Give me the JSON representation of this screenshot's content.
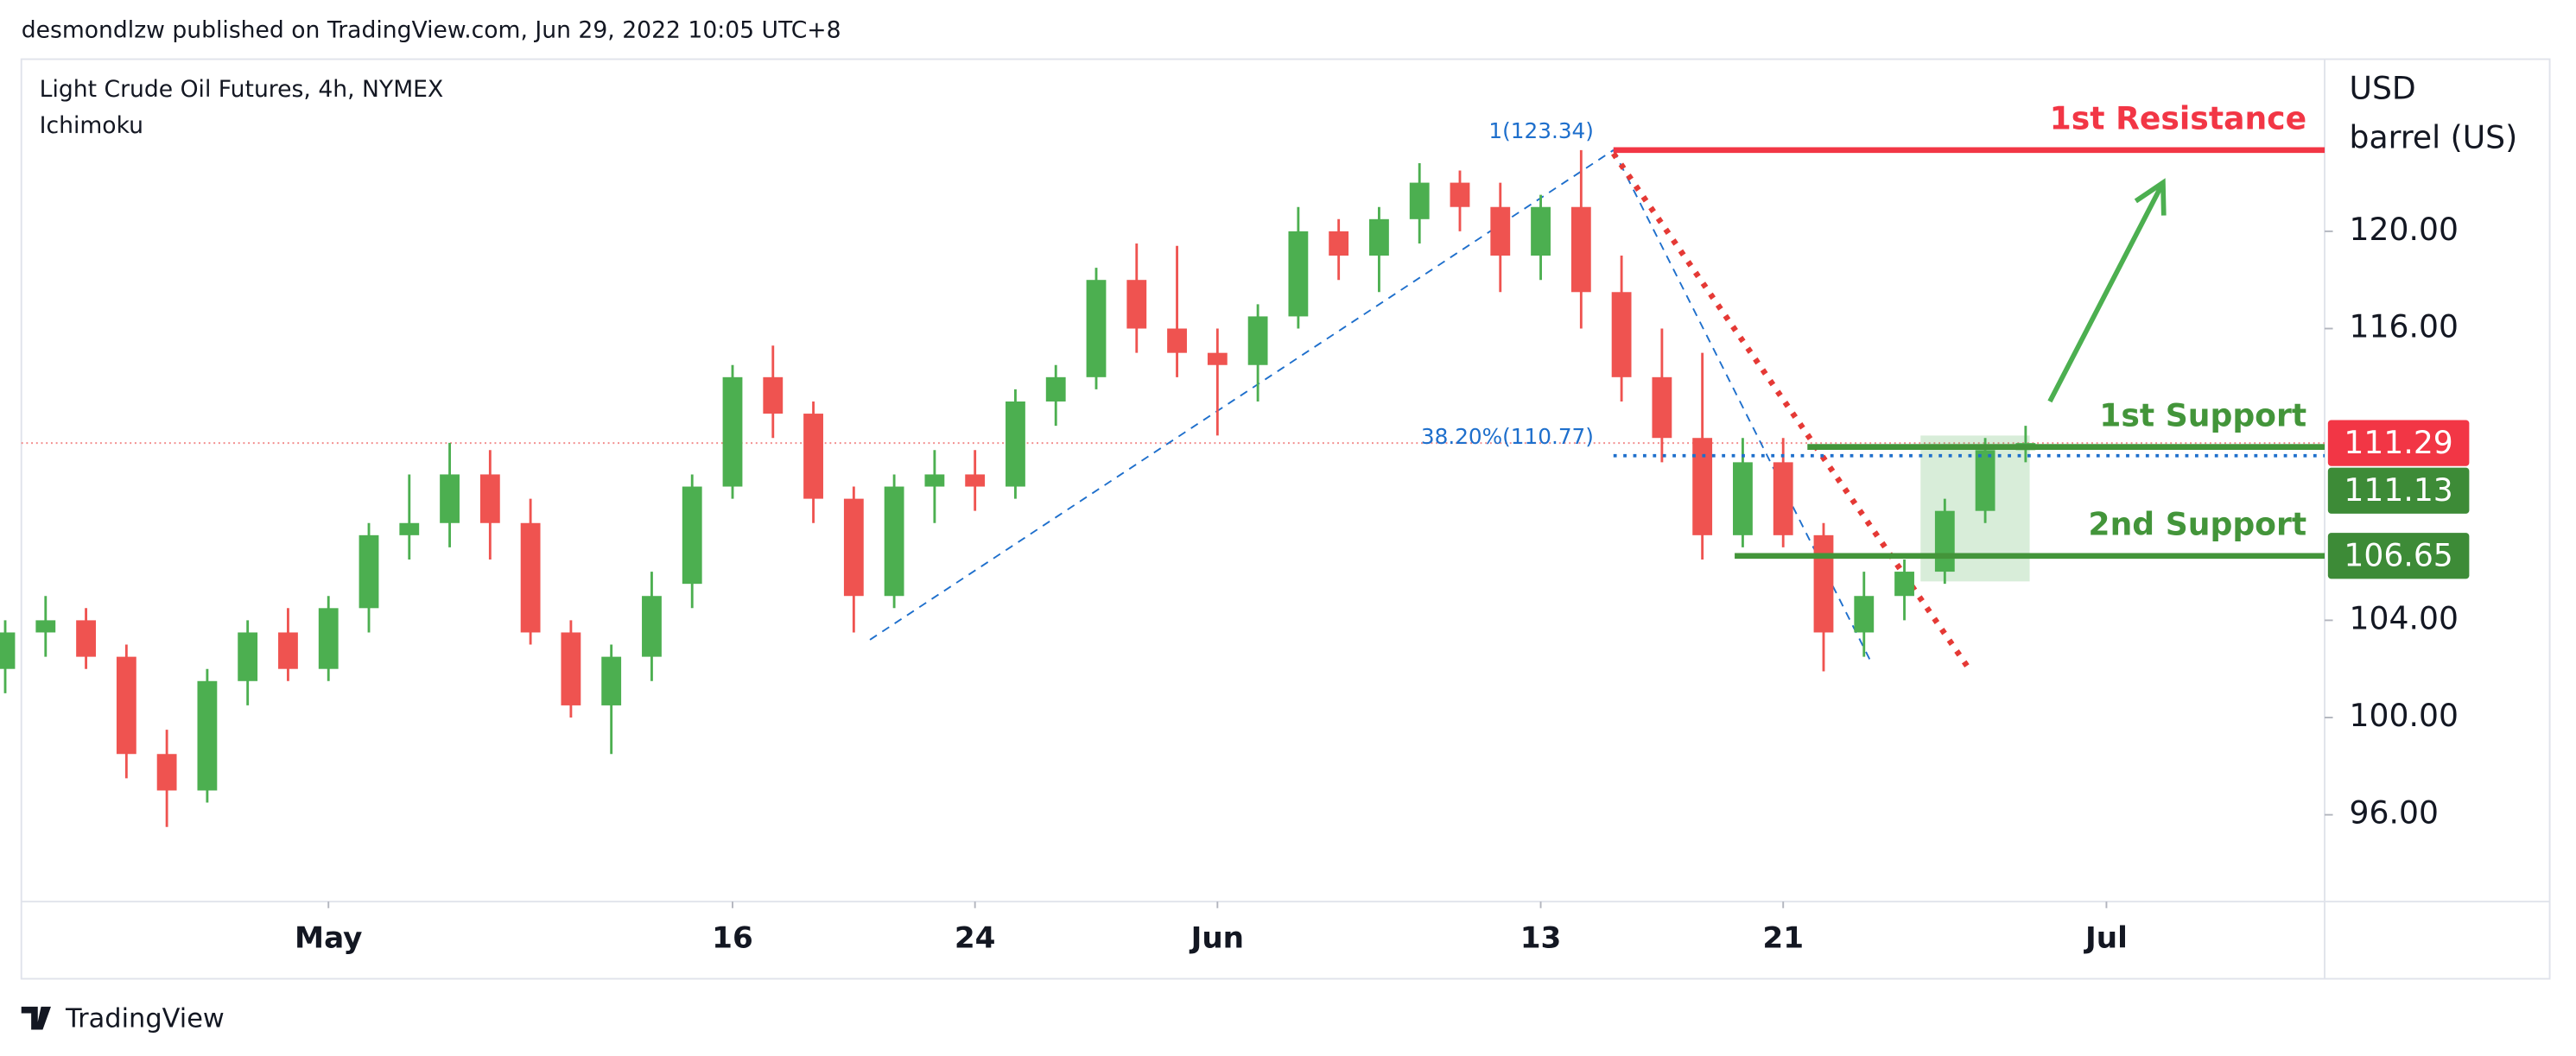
{
  "header": {
    "publisher": "desmondlzw published on TradingView.com, Jun 29, 2022 10:05 UTC+8",
    "brand": "TradingView"
  },
  "chart_data": {
    "type": "candlestick",
    "title": "Light Crude Oil Futures, 4h, NYMEX",
    "indicator": "Ichimoku",
    "currency": "USD",
    "unit": "barrel (US)",
    "up_color": "#4caf50",
    "down_color": "#ef5350",
    "xlim": [
      -7.6,
      49.4
    ],
    "xticks": [
      {
        "value": 0,
        "label": "May"
      },
      {
        "value": 10,
        "label": "16"
      },
      {
        "value": 16,
        "label": "24"
      },
      {
        "value": 22,
        "label": "Jun"
      },
      {
        "value": 30,
        "label": "13"
      },
      {
        "value": 36,
        "label": "21"
      },
      {
        "value": 44,
        "label": "Jul"
      }
    ],
    "ylim": [
      92.43,
      127.08
    ],
    "yticks": [
      {
        "value": 96,
        "label": "96.00"
      },
      {
        "value": 100,
        "label": "100.00"
      },
      {
        "value": 104,
        "label": "104.00"
      },
      {
        "value": 116,
        "label": "116.00"
      },
      {
        "value": 120,
        "label": "120.00"
      }
    ],
    "x": [
      -8,
      -7,
      -6,
      -5,
      -4,
      -3,
      -2,
      -1,
      0,
      1,
      2,
      3,
      4,
      5,
      6,
      7,
      8,
      9,
      10,
      11,
      12,
      13,
      14,
      15,
      16,
      17,
      18,
      19,
      20,
      21,
      22,
      23,
      24,
      25,
      26,
      27,
      28,
      29,
      30,
      31,
      32,
      33,
      34,
      35,
      36,
      37,
      38,
      39,
      40,
      41,
      42
    ],
    "open": [
      102,
      103.5,
      104,
      102.5,
      98.5,
      97,
      101.5,
      103.5,
      102,
      104.5,
      107.5,
      108,
      110,
      108,
      103.5,
      100.5,
      102.5,
      105.5,
      109.5,
      114,
      112.5,
      109,
      105,
      109.5,
      110,
      109.5,
      113,
      114,
      118,
      116,
      115,
      114.5,
      116.5,
      120,
      119,
      120.5,
      122,
      121,
      119,
      121,
      117.5,
      114,
      111.5,
      107.5,
      110.5,
      107.5,
      103.5,
      105,
      106,
      108.5,
      111
    ],
    "high": [
      104,
      105,
      104.5,
      103,
      99.5,
      102,
      104,
      104.5,
      105,
      108,
      110,
      111.3,
      111,
      109,
      104,
      103,
      106,
      110,
      114.5,
      115.3,
      113,
      109.5,
      110,
      111,
      111,
      113.5,
      114.5,
      118.5,
      119.5,
      119.4,
      116,
      117,
      121,
      120.5,
      121,
      122.8,
      122.5,
      122,
      121.5,
      123.34,
      119,
      116,
      115,
      111.5,
      111.5,
      108,
      106,
      106.5,
      109,
      111.5,
      112
    ],
    "low": [
      101,
      102.5,
      102,
      97.5,
      95.5,
      96.5,
      100.5,
      101.5,
      101.5,
      103.5,
      106.5,
      107,
      106.5,
      103,
      100,
      98.5,
      101.5,
      104.5,
      109,
      111.5,
      108,
      103.5,
      104.5,
      108,
      108.5,
      109,
      112,
      113.5,
      115,
      114,
      111.6,
      113,
      116,
      118,
      117.5,
      119.5,
      120,
      117.5,
      118,
      116,
      113,
      110.5,
      106.5,
      107,
      107,
      101.9,
      102.5,
      104,
      105.5,
      108,
      110.5
    ],
    "close": [
      103.5,
      104,
      102.5,
      98.5,
      97,
      101.5,
      103.5,
      102,
      104.5,
      107.5,
      108,
      110,
      108,
      103.5,
      100.5,
      102.5,
      105,
      109.5,
      114,
      112.5,
      109,
      105,
      109.5,
      110,
      109.5,
      113,
      114,
      118,
      116,
      115,
      114.5,
      116.5,
      120,
      119,
      120.5,
      122,
      121,
      119,
      121,
      117.5,
      114,
      111.5,
      107.5,
      110.5,
      107.5,
      103.5,
      105,
      106,
      108.5,
      111,
      111.29
    ],
    "last_price_line": {
      "value": 111.29,
      "color": "#f28b8b"
    },
    "fib_levels": [
      {
        "label": "1(123.34)",
        "value": 123.34,
        "start": 31.8,
        "color": "#1e6fcc"
      },
      {
        "label": "38.20%(110.77)",
        "value": 110.77,
        "start": 31.8,
        "color": "#1e6fcc"
      }
    ],
    "levels": [
      {
        "name": "1st Resistance",
        "value": 123.34,
        "start": 31.8,
        "color": "#f23645"
      },
      {
        "name": "1st Support",
        "value": 111.13,
        "start": 36.6,
        "color": "#43953a"
      },
      {
        "name": "2nd Support",
        "value": 106.65,
        "start": 34.8,
        "color": "#43953a"
      }
    ],
    "price_tags": [
      {
        "value": 111.29,
        "color": "#f23645"
      },
      {
        "value": 111.13,
        "color": "#3d8b37"
      },
      {
        "value": 106.65,
        "color": "#3d8b37"
      }
    ],
    "drawings": [
      {
        "kind": "dashed",
        "color": "#1e6fcc",
        "x": [
          13.4,
          31.8
        ],
        "y": [
          103.2,
          123.34
        ]
      },
      {
        "kind": "dashed",
        "color": "#1e6fcc",
        "x": [
          31.8,
          38.2
        ],
        "y": [
          123.34,
          102.2
        ]
      },
      {
        "kind": "dotted",
        "color": "#e53935",
        "x": [
          31.8,
          40.6
        ],
        "y": [
          123.2,
          102
        ]
      },
      {
        "kind": "arrow",
        "color": "#4caf50",
        "x": [
          42.6,
          45.4
        ],
        "y": [
          113,
          122
        ]
      },
      {
        "kind": "box",
        "color": "#4caf50",
        "x": [
          39.4,
          42.1
        ],
        "y": [
          111.6,
          105.6
        ]
      }
    ]
  }
}
